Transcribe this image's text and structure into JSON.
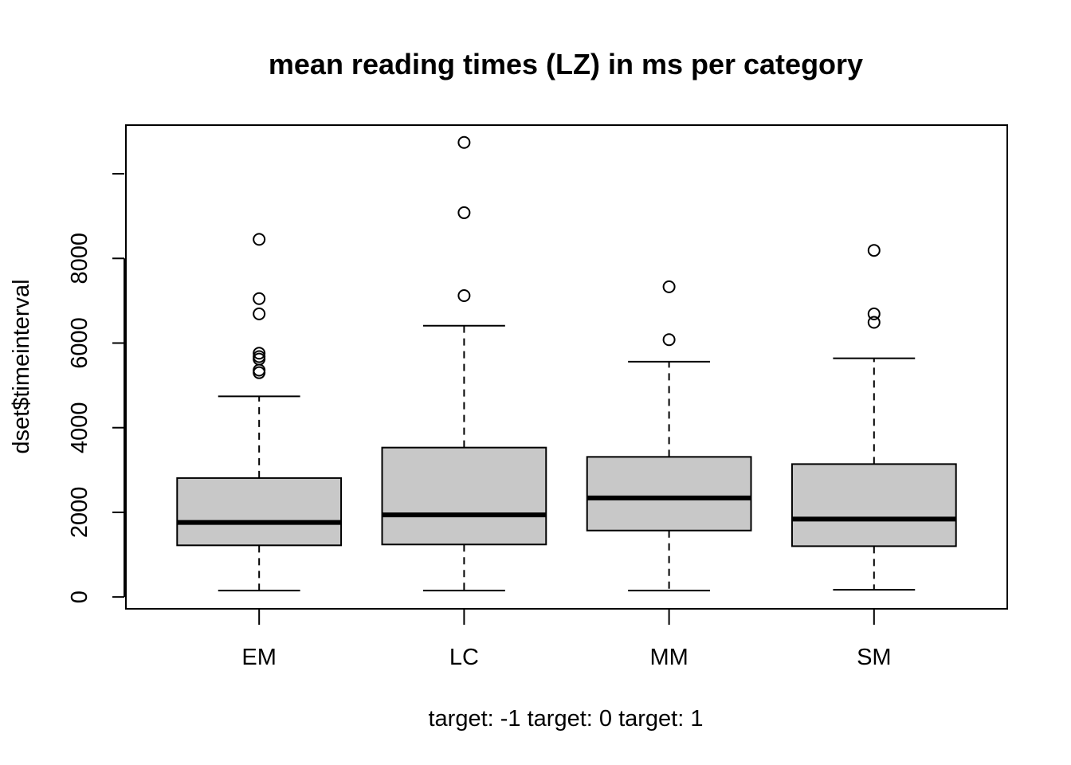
{
  "chart_data": {
    "type": "boxplot",
    "title": "mean reading times (LZ) in ms per category",
    "xlabel": "target: -1 target: 0 target: 1",
    "ylabel": "dset$timeinterval",
    "ylim": [
      -280,
      11150
    ],
    "yticks": [
      0,
      2000,
      4000,
      6000,
      8000
    ],
    "categories": [
      "EM",
      "LC",
      "MM",
      "SM"
    ],
    "boxes": [
      {
        "category": "EM",
        "whisker_low": 150,
        "q1": 1220,
        "median": 1760,
        "q3": 2810,
        "whisker_high": 4740,
        "outliers": [
          8450,
          7050,
          6690,
          5760,
          5680,
          5620,
          5360,
          5300
        ]
      },
      {
        "category": "LC",
        "whisker_low": 150,
        "q1": 1240,
        "median": 1940,
        "q3": 3530,
        "whisker_high": 6410,
        "outliers": [
          10740,
          9080,
          7120
        ]
      },
      {
        "category": "MM",
        "whisker_low": 150,
        "q1": 1570,
        "median": 2340,
        "q3": 3310,
        "whisker_high": 5560,
        "outliers": [
          7330,
          6080
        ]
      },
      {
        "category": "SM",
        "whisker_low": 170,
        "q1": 1200,
        "median": 1840,
        "q3": 3140,
        "whisker_high": 5640,
        "outliers": [
          8190,
          6690,
          6490
        ]
      }
    ],
    "box_fill": "#c8c8c8",
    "grid": false,
    "legend": "none"
  }
}
